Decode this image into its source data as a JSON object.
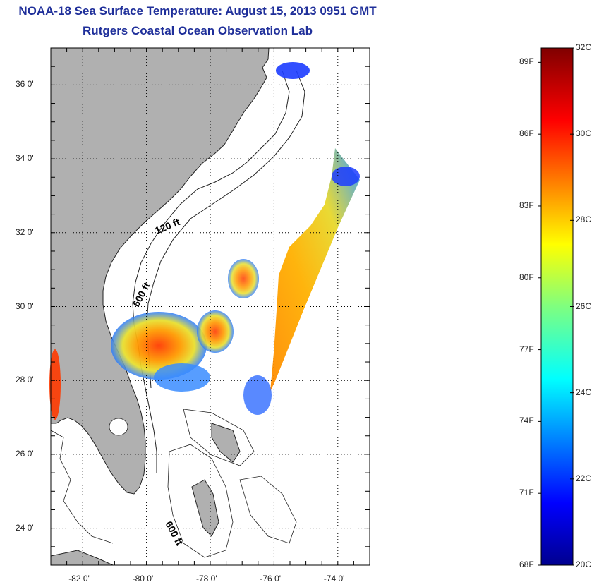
{
  "title": "NOAA-18 Sea Surface Temperature:  August 15, 2013 0951 GMT",
  "subtitle": "Rutgers Coastal Ocean Observation Lab",
  "map": {
    "lon_range": [
      -83,
      -73
    ],
    "lat_range": [
      23,
      37
    ],
    "x_tick_labels": [
      "-82 0'",
      "-80 0'",
      "-78 0'",
      "-76 0'",
      "-74 0'"
    ],
    "y_tick_labels": [
      "36 0'",
      "34 0'",
      "32 0'",
      "30 0'",
      "28 0'",
      "26 0'",
      "24 0'"
    ],
    "contour_labels": [
      "120 ft",
      "600 ft",
      "600 ft"
    ],
    "land_color": "#b0b0b0"
  },
  "colorbar": {
    "fahrenheit_labels": [
      "89F",
      "86F",
      "83F",
      "80F",
      "77F",
      "74F",
      "71F",
      "68F"
    ],
    "celsius_labels": [
      "32C",
      "30C",
      "28C",
      "26C",
      "24C",
      "22C",
      "20C"
    ],
    "range_c": [
      20,
      32
    ]
  }
}
